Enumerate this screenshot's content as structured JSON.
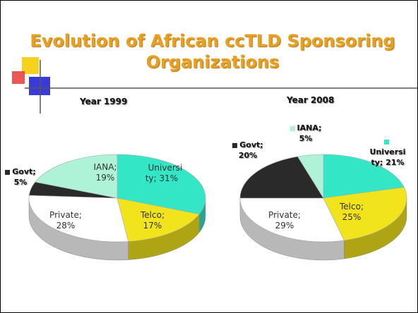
{
  "title": "Evolution of African ccTLD Sponsoring Organizations",
  "chart_data": [
    {
      "type": "pie3d",
      "title": "Year 1999",
      "categories": [
        "University",
        "Telco",
        "Private",
        "Govt",
        "IANA"
      ],
      "values": [
        31,
        17,
        28,
        5,
        19
      ],
      "value_labels": [
        "Universi ty; 31%",
        "Telco; 17%",
        "Private; 28%",
        "Govt; 5%",
        "IANA; 19%"
      ],
      "colors": [
        "#33e6c6",
        "#f2e41c",
        "#ffffff",
        "#2a2a2a",
        "#aef2d8"
      ]
    },
    {
      "type": "pie3d",
      "title": "Year 2008",
      "categories": [
        "University",
        "Telco",
        "Private",
        "Govt",
        "IANA"
      ],
      "values": [
        21,
        25,
        29,
        20,
        5
      ],
      "value_labels": [
        "Universi ty; 21%",
        "Telco; 25%",
        "Private; 29%",
        "Govt; 20%",
        "IANA; 5%"
      ],
      "colors": [
        "#33e6c6",
        "#f2e41c",
        "#ffffff",
        "#2a2a2a",
        "#aef2d8"
      ]
    }
  ]
}
